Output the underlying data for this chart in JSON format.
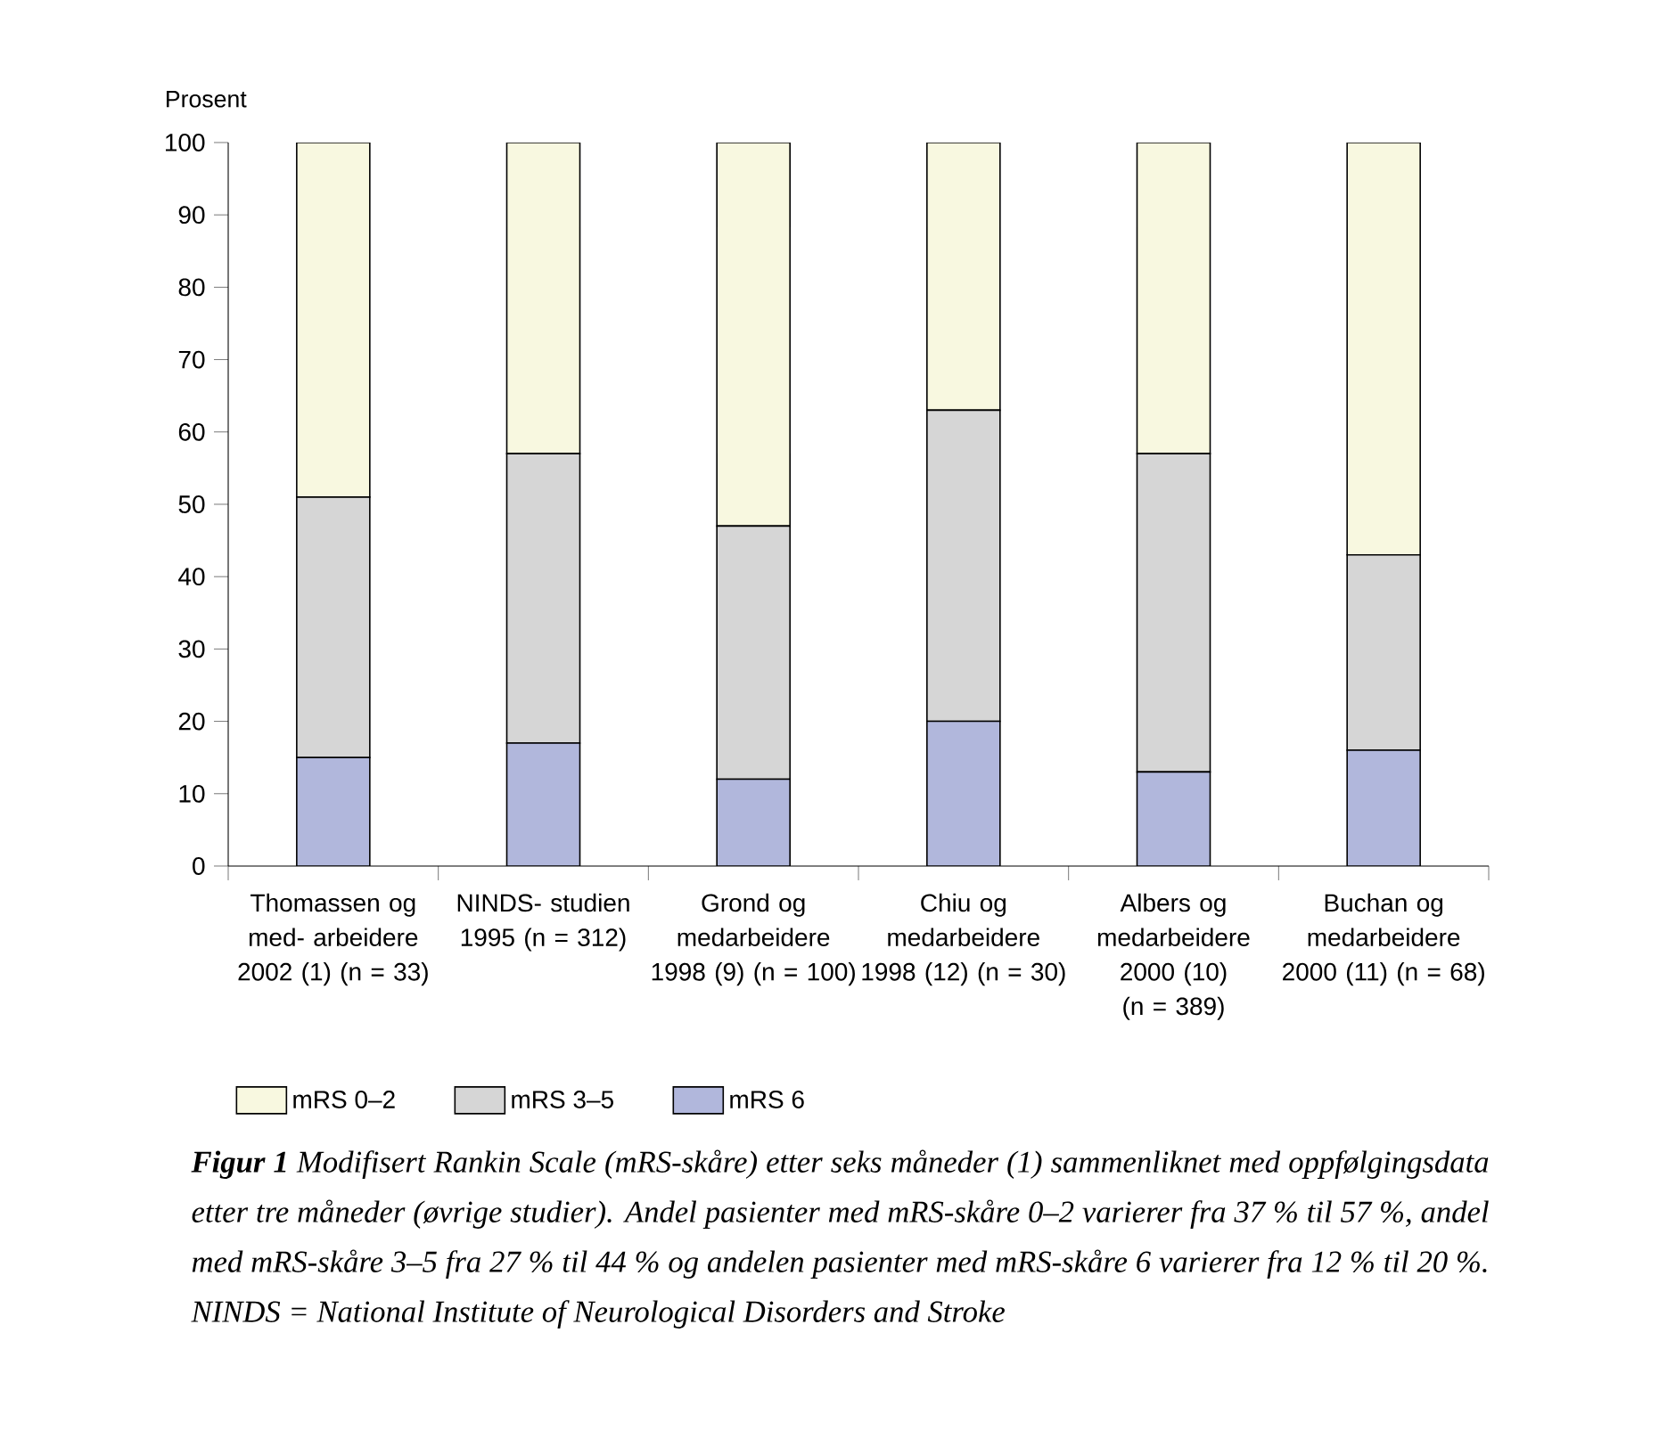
{
  "chart_data": {
    "type": "bar",
    "stacked": true,
    "title": "**Figur 1** Modifisert Rankin Scale (mRS-skåre) etter seks måneder (1) sammenliknet med oppfølgingsdata etter tre måneder (øvrige studier). Andel pasienter med mRS-skåre 0–2 varierer fra 37 % til 57 %, andel med mRS-skåre 3–5 fra 27 % til 44 % og andelen pasienter med mRS-skåre 6 varierer fra 12 % til 20 %. NINDS = National Institute of Neurological Disorders and Stroke",
    "ylabel": "Prosent",
    "categories": [
      "Thomassen og med- arbeidere 2002 (1) (n = 33)",
      "NINDS- studien 1995 (n = 312)",
      "Grond og medarbeidere 1998 (9) (n = 100)",
      "Chiu og medarbeidere 1998 (12) (n = 30)",
      "Albers og medarbeidere 2000 (10) (n = 389)",
      "Buchan og medarbeidere 2000 (11) (n = 68)"
    ],
    "series": [
      {
        "name": "mRS 6",
        "color": "#b1b7dc",
        "values": [
          15,
          17,
          12,
          20,
          13,
          16
        ]
      },
      {
        "name": "mRS 3–5",
        "color": "#d6d6d6",
        "values": [
          36,
          40,
          35,
          43,
          44,
          27
        ]
      },
      {
        "name": "mRS 0–2",
        "color": "#f8f8e0",
        "values": [
          49,
          43,
          53,
          37,
          43,
          57
        ]
      }
    ],
    "ylim": [
      0,
      100
    ],
    "yticks": [
      0,
      10,
      20,
      30,
      40,
      50,
      60,
      70,
      80,
      90,
      100
    ],
    "legend": "bottom"
  }
}
